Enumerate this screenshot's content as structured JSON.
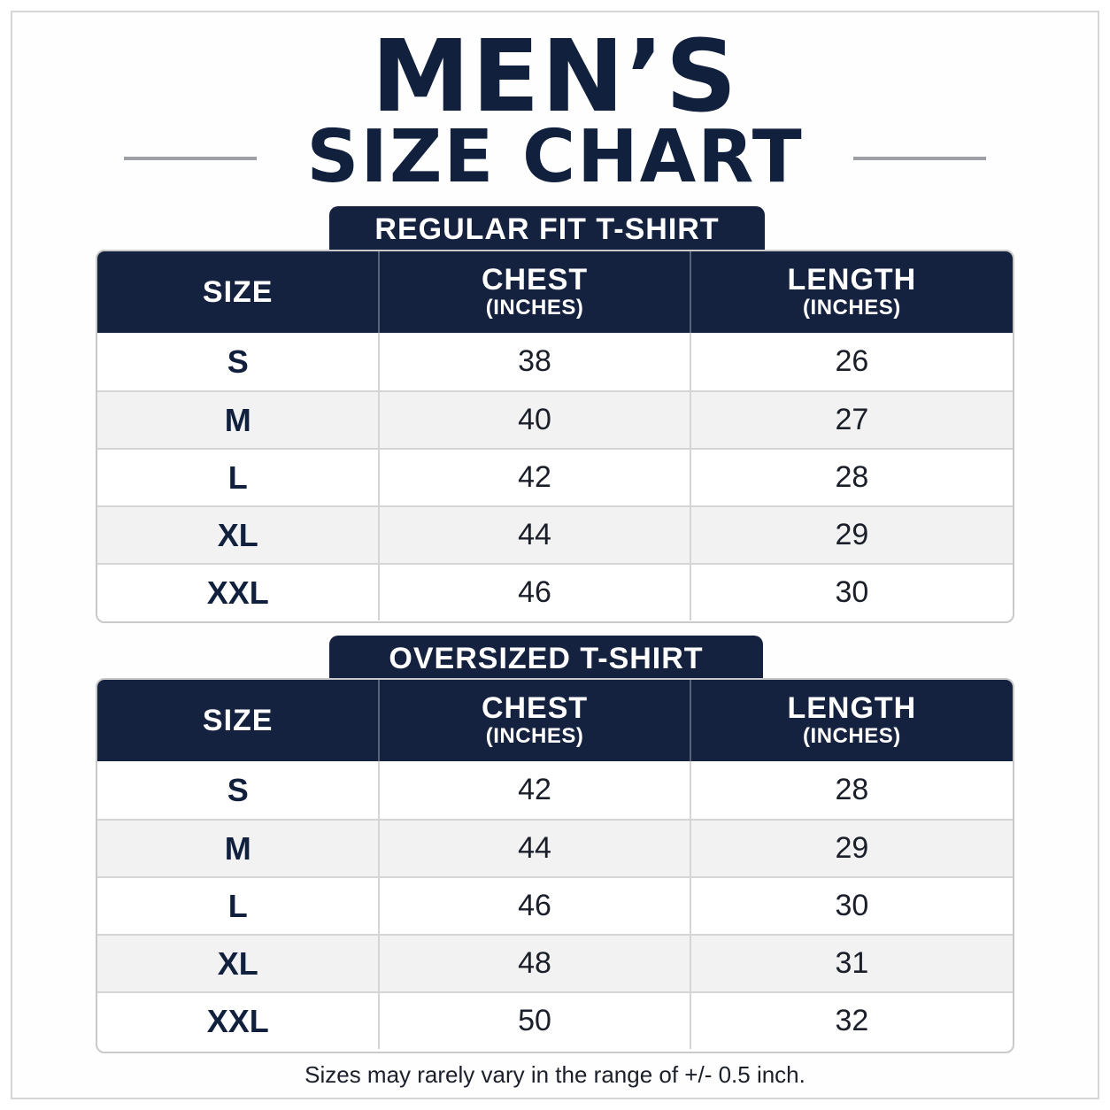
{
  "title": {
    "line1": "MEN’S",
    "line2": "SIZE CHART"
  },
  "tables": [
    {
      "tab_label": "REGULAR FIT T-SHIRT",
      "headers": {
        "size": "SIZE",
        "chest": "CHEST",
        "chest_unit": "(INCHES)",
        "length": "LENGTH",
        "length_unit": "(INCHES)"
      },
      "rows": [
        {
          "size": "S",
          "chest": "38",
          "length": "26"
        },
        {
          "size": "M",
          "chest": "40",
          "length": "27"
        },
        {
          "size": "L",
          "chest": "42",
          "length": "28"
        },
        {
          "size": "XL",
          "chest": "44",
          "length": "29"
        },
        {
          "size": "XXL",
          "chest": "46",
          "length": "30"
        }
      ]
    },
    {
      "tab_label": "OVERSIZED T-SHIRT",
      "headers": {
        "size": "SIZE",
        "chest": "CHEST",
        "chest_unit": "(INCHES)",
        "length": "LENGTH",
        "length_unit": "(INCHES)"
      },
      "rows": [
        {
          "size": "S",
          "chest": "42",
          "length": "28"
        },
        {
          "size": "M",
          "chest": "44",
          "length": "29"
        },
        {
          "size": "L",
          "chest": "46",
          "length": "30"
        },
        {
          "size": "XL",
          "chest": "48",
          "length": "31"
        },
        {
          "size": "XXL",
          "chest": "50",
          "length": "32"
        }
      ]
    }
  ],
  "footnote": "Sizes may rarely vary in the range of +/- 0.5 inch.",
  "colors": {
    "navy": "#15223f",
    "row_alt": "#f2f2f2",
    "rule": "#9c9fa6"
  }
}
